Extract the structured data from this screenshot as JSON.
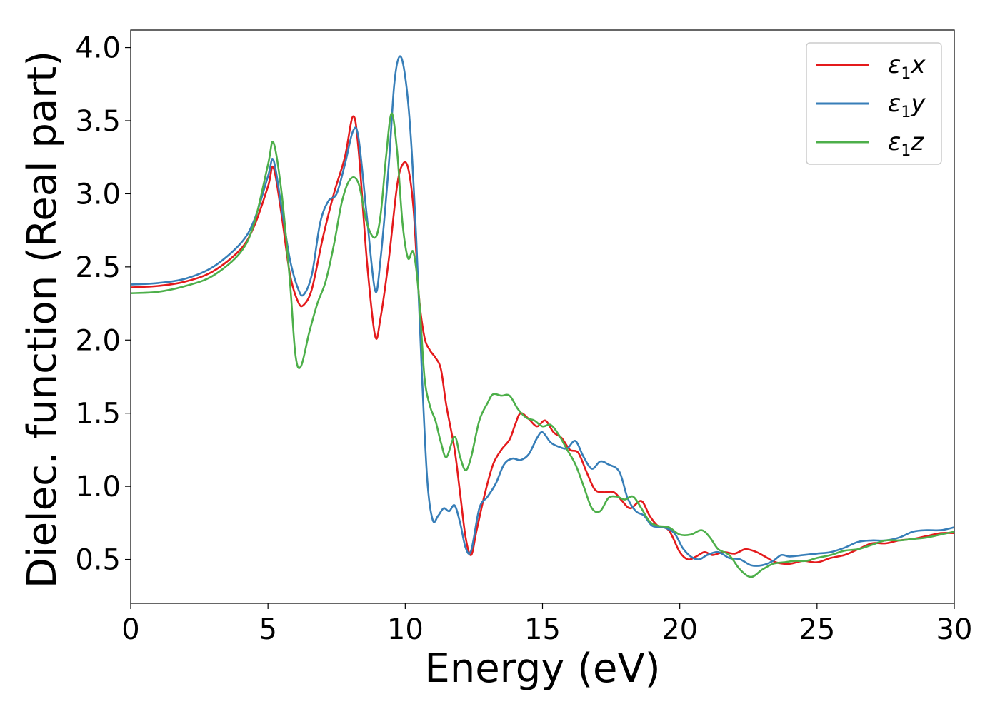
{
  "chart_data": {
    "type": "line",
    "xlabel": "Energy (eV)",
    "ylabel": "Dielec. function (Real part)",
    "xlim": [
      0,
      30
    ],
    "ylim": [
      0.2,
      4.12
    ],
    "xticks": [
      0,
      5,
      10,
      15,
      20,
      25,
      30
    ],
    "xtick_labels": [
      "0",
      "5",
      "10",
      "15",
      "20",
      "25",
      "30"
    ],
    "yticks": [
      0.5,
      1.0,
      1.5,
      2.0,
      2.5,
      3.0,
      3.5,
      4.0
    ],
    "ytick_labels": [
      "0.5",
      "1.0",
      "1.5",
      "2.0",
      "2.5",
      "3.0",
      "3.5",
      "4.0"
    ],
    "grid": false,
    "legend_position": "top-right",
    "series": [
      {
        "name": "ε1x",
        "legend_base": "ε",
        "legend_sub": "1",
        "legend_var": "x",
        "color": "#e41a1c",
        "points": [
          [
            0,
            2.36
          ],
          [
            1,
            2.37
          ],
          [
            2,
            2.4
          ],
          [
            3,
            2.47
          ],
          [
            4,
            2.62
          ],
          [
            4.5,
            2.78
          ],
          [
            5,
            3.05
          ],
          [
            5.2,
            3.18
          ],
          [
            5.5,
            2.85
          ],
          [
            5.8,
            2.45
          ],
          [
            6.1,
            2.26
          ],
          [
            6.3,
            2.24
          ],
          [
            6.6,
            2.35
          ],
          [
            7.0,
            2.7
          ],
          [
            7.4,
            3.0
          ],
          [
            7.8,
            3.25
          ],
          [
            8.1,
            3.53
          ],
          [
            8.3,
            3.3
          ],
          [
            8.6,
            2.55
          ],
          [
            8.9,
            2.03
          ],
          [
            9.1,
            2.15
          ],
          [
            9.4,
            2.55
          ],
          [
            9.7,
            3.05
          ],
          [
            9.9,
            3.2
          ],
          [
            10.1,
            3.18
          ],
          [
            10.3,
            2.9
          ],
          [
            10.5,
            2.3
          ],
          [
            10.7,
            2.02
          ],
          [
            10.9,
            1.93
          ],
          [
            11.1,
            1.88
          ],
          [
            11.3,
            1.8
          ],
          [
            11.5,
            1.55
          ],
          [
            11.8,
            1.25
          ],
          [
            12.0,
            0.95
          ],
          [
            12.2,
            0.65
          ],
          [
            12.4,
            0.53
          ],
          [
            12.6,
            0.7
          ],
          [
            12.9,
            0.95
          ],
          [
            13.2,
            1.15
          ],
          [
            13.5,
            1.25
          ],
          [
            13.8,
            1.32
          ],
          [
            14.0,
            1.42
          ],
          [
            14.2,
            1.5
          ],
          [
            14.5,
            1.46
          ],
          [
            14.8,
            1.41
          ],
          [
            15.1,
            1.45
          ],
          [
            15.4,
            1.37
          ],
          [
            15.7,
            1.33
          ],
          [
            16.0,
            1.25
          ],
          [
            16.3,
            1.23
          ],
          [
            16.6,
            1.1
          ],
          [
            16.9,
            0.98
          ],
          [
            17.2,
            0.96
          ],
          [
            17.6,
            0.96
          ],
          [
            17.9,
            0.9
          ],
          [
            18.2,
            0.85
          ],
          [
            18.6,
            0.9
          ],
          [
            18.9,
            0.8
          ],
          [
            19.2,
            0.73
          ],
          [
            19.6,
            0.7
          ],
          [
            20.0,
            0.55
          ],
          [
            20.3,
            0.5
          ],
          [
            20.6,
            0.52
          ],
          [
            20.9,
            0.55
          ],
          [
            21.2,
            0.53
          ],
          [
            21.6,
            0.55
          ],
          [
            22.0,
            0.54
          ],
          [
            22.4,
            0.57
          ],
          [
            22.8,
            0.55
          ],
          [
            23.1,
            0.52
          ],
          [
            23.5,
            0.48
          ],
          [
            24.0,
            0.47
          ],
          [
            24.5,
            0.49
          ],
          [
            25.0,
            0.48
          ],
          [
            25.5,
            0.51
          ],
          [
            26.0,
            0.53
          ],
          [
            26.5,
            0.57
          ],
          [
            27.0,
            0.61
          ],
          [
            27.5,
            0.61
          ],
          [
            28.0,
            0.63
          ],
          [
            28.5,
            0.64
          ],
          [
            29.0,
            0.66
          ],
          [
            29.5,
            0.68
          ],
          [
            30.0,
            0.68
          ]
        ]
      },
      {
        "name": "ε1y",
        "legend_base": "ε",
        "legend_sub": "1",
        "legend_var": "y",
        "color": "#377eb8",
        "points": [
          [
            0,
            2.38
          ],
          [
            1,
            2.39
          ],
          [
            2,
            2.42
          ],
          [
            3,
            2.5
          ],
          [
            4,
            2.66
          ],
          [
            4.5,
            2.82
          ],
          [
            5,
            3.12
          ],
          [
            5.2,
            3.23
          ],
          [
            5.5,
            2.9
          ],
          [
            5.8,
            2.55
          ],
          [
            6.1,
            2.35
          ],
          [
            6.3,
            2.31
          ],
          [
            6.6,
            2.45
          ],
          [
            6.9,
            2.8
          ],
          [
            7.2,
            2.95
          ],
          [
            7.5,
            3.0
          ],
          [
            7.8,
            3.2
          ],
          [
            8.1,
            3.43
          ],
          [
            8.3,
            3.38
          ],
          [
            8.6,
            2.85
          ],
          [
            8.9,
            2.34
          ],
          [
            9.1,
            2.55
          ],
          [
            9.4,
            3.2
          ],
          [
            9.6,
            3.75
          ],
          [
            9.8,
            3.94
          ],
          [
            10.0,
            3.8
          ],
          [
            10.2,
            3.4
          ],
          [
            10.4,
            2.7
          ],
          [
            10.6,
            1.8
          ],
          [
            10.8,
            1.05
          ],
          [
            11.0,
            0.77
          ],
          [
            11.2,
            0.8
          ],
          [
            11.4,
            0.85
          ],
          [
            11.6,
            0.83
          ],
          [
            11.8,
            0.87
          ],
          [
            12.0,
            0.75
          ],
          [
            12.2,
            0.58
          ],
          [
            12.4,
            0.56
          ],
          [
            12.7,
            0.85
          ],
          [
            13.0,
            0.93
          ],
          [
            13.3,
            1.02
          ],
          [
            13.6,
            1.15
          ],
          [
            13.9,
            1.19
          ],
          [
            14.2,
            1.18
          ],
          [
            14.5,
            1.22
          ],
          [
            14.8,
            1.33
          ],
          [
            15.0,
            1.37
          ],
          [
            15.3,
            1.3
          ],
          [
            15.6,
            1.27
          ],
          [
            15.9,
            1.26
          ],
          [
            16.2,
            1.31
          ],
          [
            16.5,
            1.2
          ],
          [
            16.8,
            1.12
          ],
          [
            17.1,
            1.17
          ],
          [
            17.4,
            1.15
          ],
          [
            17.8,
            1.1
          ],
          [
            18.1,
            0.92
          ],
          [
            18.4,
            0.83
          ],
          [
            18.7,
            0.8
          ],
          [
            19.0,
            0.73
          ],
          [
            19.4,
            0.72
          ],
          [
            19.8,
            0.68
          ],
          [
            20.1,
            0.58
          ],
          [
            20.4,
            0.52
          ],
          [
            20.7,
            0.5
          ],
          [
            21.0,
            0.53
          ],
          [
            21.4,
            0.55
          ],
          [
            21.8,
            0.51
          ],
          [
            22.2,
            0.5
          ],
          [
            22.6,
            0.46
          ],
          [
            23.0,
            0.46
          ],
          [
            23.4,
            0.49
          ],
          [
            23.7,
            0.53
          ],
          [
            24.0,
            0.52
          ],
          [
            24.5,
            0.53
          ],
          [
            25.0,
            0.54
          ],
          [
            25.5,
            0.55
          ],
          [
            26.0,
            0.58
          ],
          [
            26.5,
            0.62
          ],
          [
            27.0,
            0.63
          ],
          [
            27.5,
            0.63
          ],
          [
            28.0,
            0.65
          ],
          [
            28.5,
            0.69
          ],
          [
            29.0,
            0.7
          ],
          [
            29.5,
            0.7
          ],
          [
            30.0,
            0.72
          ]
        ]
      },
      {
        "name": "ε1z",
        "legend_base": "ε",
        "legend_sub": "1",
        "legend_var": "z",
        "color": "#4daf4a",
        "points": [
          [
            0,
            2.32
          ],
          [
            1,
            2.33
          ],
          [
            2,
            2.37
          ],
          [
            3,
            2.44
          ],
          [
            4,
            2.6
          ],
          [
            4.5,
            2.8
          ],
          [
            5,
            3.2
          ],
          [
            5.2,
            3.35
          ],
          [
            5.5,
            3.0
          ],
          [
            5.8,
            2.4
          ],
          [
            6.0,
            1.9
          ],
          [
            6.2,
            1.82
          ],
          [
            6.5,
            2.05
          ],
          [
            6.8,
            2.25
          ],
          [
            7.1,
            2.4
          ],
          [
            7.4,
            2.65
          ],
          [
            7.7,
            2.95
          ],
          [
            8.0,
            3.1
          ],
          [
            8.3,
            3.07
          ],
          [
            8.6,
            2.8
          ],
          [
            8.9,
            2.7
          ],
          [
            9.1,
            2.85
          ],
          [
            9.3,
            3.25
          ],
          [
            9.5,
            3.55
          ],
          [
            9.7,
            3.3
          ],
          [
            9.9,
            2.8
          ],
          [
            10.1,
            2.56
          ],
          [
            10.3,
            2.6
          ],
          [
            10.5,
            2.3
          ],
          [
            10.7,
            1.75
          ],
          [
            10.9,
            1.55
          ],
          [
            11.1,
            1.45
          ],
          [
            11.3,
            1.3
          ],
          [
            11.5,
            1.2
          ],
          [
            11.8,
            1.34
          ],
          [
            12.0,
            1.2
          ],
          [
            12.2,
            1.11
          ],
          [
            12.4,
            1.2
          ],
          [
            12.7,
            1.45
          ],
          [
            13.0,
            1.57
          ],
          [
            13.2,
            1.63
          ],
          [
            13.5,
            1.62
          ],
          [
            13.8,
            1.62
          ],
          [
            14.1,
            1.53
          ],
          [
            14.4,
            1.47
          ],
          [
            14.7,
            1.45
          ],
          [
            15.0,
            1.41
          ],
          [
            15.3,
            1.42
          ],
          [
            15.6,
            1.35
          ],
          [
            15.9,
            1.25
          ],
          [
            16.2,
            1.15
          ],
          [
            16.5,
            1.0
          ],
          [
            16.8,
            0.85
          ],
          [
            17.1,
            0.83
          ],
          [
            17.4,
            0.92
          ],
          [
            17.7,
            0.93
          ],
          [
            18.0,
            0.91
          ],
          [
            18.3,
            0.93
          ],
          [
            18.6,
            0.85
          ],
          [
            18.9,
            0.76
          ],
          [
            19.2,
            0.73
          ],
          [
            19.6,
            0.72
          ],
          [
            20.0,
            0.67
          ],
          [
            20.4,
            0.67
          ],
          [
            20.8,
            0.7
          ],
          [
            21.1,
            0.65
          ],
          [
            21.4,
            0.57
          ],
          [
            21.8,
            0.53
          ],
          [
            22.2,
            0.43
          ],
          [
            22.6,
            0.38
          ],
          [
            23.0,
            0.43
          ],
          [
            23.4,
            0.47
          ],
          [
            23.8,
            0.48
          ],
          [
            24.2,
            0.49
          ],
          [
            24.6,
            0.49
          ],
          [
            25.0,
            0.51
          ],
          [
            25.5,
            0.53
          ],
          [
            26.0,
            0.56
          ],
          [
            26.5,
            0.57
          ],
          [
            27.0,
            0.6
          ],
          [
            27.5,
            0.63
          ],
          [
            28.0,
            0.63
          ],
          [
            28.5,
            0.64
          ],
          [
            29.0,
            0.65
          ],
          [
            29.5,
            0.67
          ],
          [
            30.0,
            0.69
          ]
        ]
      }
    ]
  }
}
